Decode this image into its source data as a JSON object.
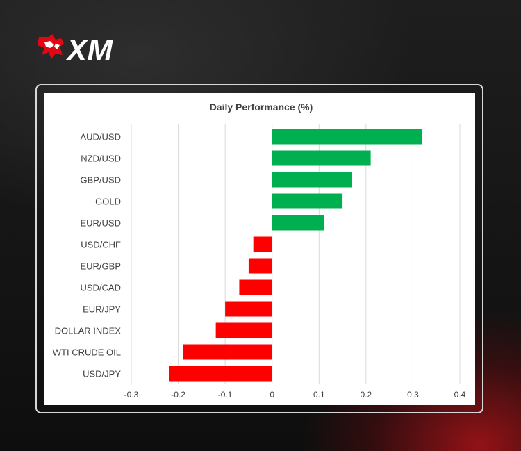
{
  "brand": {
    "name": "XM",
    "logo_text": "XM"
  },
  "colors": {
    "positive": "#00b050",
    "negative": "#ff0000",
    "grid": "#d9d9d9",
    "text": "#404040"
  },
  "chart_data": {
    "type": "bar",
    "orientation": "horizontal",
    "title": "Daily Performance (%)",
    "categories": [
      "AUD/USD",
      "NZD/USD",
      "GBP/USD",
      "GOLD",
      "EUR/USD",
      "USD/CHF",
      "EUR/GBP",
      "USD/CAD",
      "EUR/JPY",
      "DOLLAR INDEX",
      "WTI CRUDE OIL",
      "USD/JPY"
    ],
    "values": [
      0.32,
      0.21,
      0.17,
      0.15,
      0.11,
      -0.04,
      -0.05,
      -0.07,
      -0.1,
      -0.12,
      -0.19,
      -0.22
    ],
    "xlim": [
      -0.3,
      0.4
    ],
    "xticks": [
      "-0.3",
      "-0.2",
      "-0.1",
      "0",
      "0.1",
      "0.2",
      "0.3",
      "0.4"
    ],
    "grid": "vertical",
    "legend": "none"
  }
}
